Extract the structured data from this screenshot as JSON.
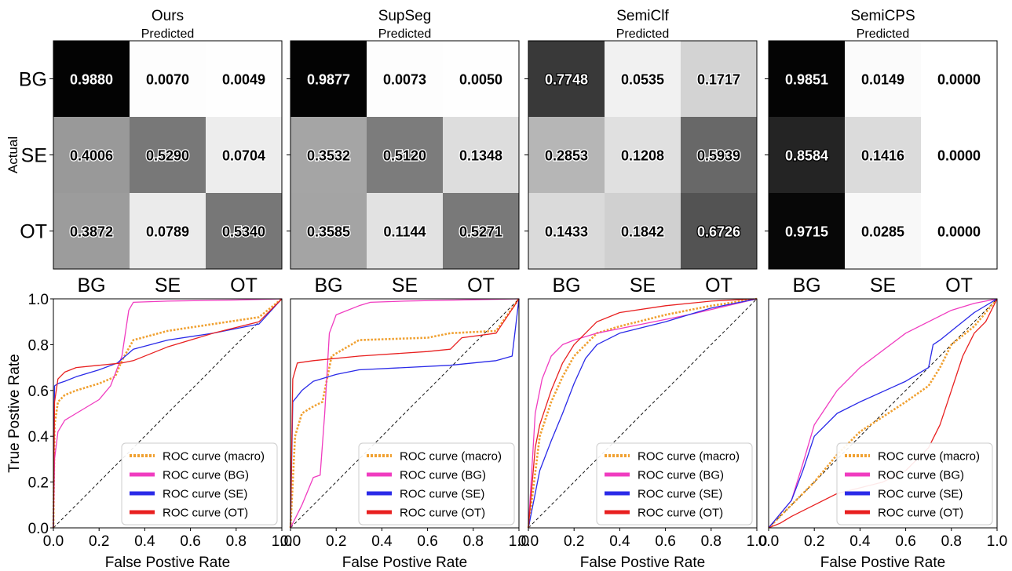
{
  "cm_panels": [
    {
      "title": "Ours",
      "xlabel": "Predicted",
      "ylabel": "Actual",
      "row_labels": [
        "BG",
        "SE",
        "OT"
      ],
      "col_labels": [
        "BG",
        "SE",
        "OT"
      ],
      "matrix": [
        [
          0.988,
          0.007,
          0.0049
        ],
        [
          0.4006,
          0.529,
          0.0704
        ],
        [
          0.3872,
          0.0789,
          0.534
        ]
      ],
      "cell_text": [
        [
          "0.9880",
          "0.0070",
          "0.0049"
        ],
        [
          "0.4006",
          "0.5290",
          "0.0704"
        ],
        [
          "0.3872",
          "0.0789",
          "0.5340"
        ]
      ]
    },
    {
      "title": "SupSeg",
      "xlabel": "Predicted",
      "col_labels": [
        "BG",
        "SE",
        "OT"
      ],
      "matrix": [
        [
          0.9877,
          0.0073,
          0.005
        ],
        [
          0.3532,
          0.512,
          0.1348
        ],
        [
          0.3585,
          0.1144,
          0.5271
        ]
      ],
      "cell_text": [
        [
          "0.9877",
          "0.0073",
          "0.0050"
        ],
        [
          "0.3532",
          "0.5120",
          "0.1348"
        ],
        [
          "0.3585",
          "0.1144",
          "0.5271"
        ]
      ]
    },
    {
      "title": "SemiClf",
      "xlabel": "Predicted",
      "col_labels": [
        "BG",
        "SE",
        "OT"
      ],
      "matrix": [
        [
          0.7748,
          0.0535,
          0.1717
        ],
        [
          0.2853,
          0.1208,
          0.5939
        ],
        [
          0.1433,
          0.1842,
          0.6726
        ]
      ],
      "cell_text": [
        [
          "0.7748",
          "0.0535",
          "0.1717"
        ],
        [
          "0.2853",
          "0.1208",
          "0.5939"
        ],
        [
          "0.1433",
          "0.1842",
          "0.6726"
        ]
      ]
    },
    {
      "title": "SemiCPS",
      "xlabel": "Predicted",
      "col_labels": [
        "BG",
        "SE",
        "OT"
      ],
      "matrix": [
        [
          0.9851,
          0.0149,
          0.0
        ],
        [
          0.8584,
          0.1416,
          0.0
        ],
        [
          0.9715,
          0.0285,
          0.0
        ]
      ],
      "cell_text": [
        [
          "0.9851",
          "0.0149",
          "0.0000"
        ],
        [
          "0.8584",
          "0.1416",
          "0.0000"
        ],
        [
          "0.9715",
          "0.0285",
          "0.0000"
        ]
      ]
    }
  ],
  "roc_common": {
    "xlabel": "False Postive Rate",
    "ylabel": "True Postive Rate",
    "xticks": [
      "0.0",
      "0.2",
      "0.4",
      "0.6",
      "0.8",
      "1.0"
    ],
    "yticks": [
      "0.0",
      "0.2",
      "0.4",
      "0.6",
      "0.8",
      "1.0"
    ],
    "xlim": [
      0,
      1
    ],
    "ylim": [
      0,
      1
    ],
    "legend_position": "bottom-right",
    "series": [
      {
        "key": "macro",
        "name": "ROC curve (macro)",
        "color": "#f0a030",
        "style": "dotted"
      },
      {
        "key": "bg",
        "name": "ROC curve (BG)",
        "color": "#f03cc0",
        "style": "solid"
      },
      {
        "key": "se",
        "name": "ROC curve (SE)",
        "color": "#2a2ae8",
        "style": "solid"
      },
      {
        "key": "ot",
        "name": "ROC curve (OT)",
        "color": "#e82020",
        "style": "solid"
      }
    ]
  },
  "chart_data": [
    {
      "type": "line",
      "panel": "Ours",
      "xlim": [
        0,
        1
      ],
      "ylim": [
        0,
        1
      ],
      "series": [
        {
          "name": "ROC curve (macro)",
          "x": [
            0,
            0.005,
            0.02,
            0.05,
            0.1,
            0.2,
            0.27,
            0.3,
            0.35,
            0.5,
            0.7,
            0.9,
            1.0
          ],
          "y": [
            0,
            0.45,
            0.55,
            0.58,
            0.6,
            0.63,
            0.66,
            0.73,
            0.82,
            0.86,
            0.89,
            0.92,
            1.0
          ]
        },
        {
          "name": "ROC curve (BG)",
          "x": [
            0,
            0.005,
            0.02,
            0.05,
            0.1,
            0.2,
            0.25,
            0.3,
            0.33,
            0.35,
            0.5,
            0.8,
            1.0
          ],
          "y": [
            0,
            0.3,
            0.42,
            0.47,
            0.5,
            0.56,
            0.62,
            0.75,
            0.95,
            0.985,
            0.99,
            0.995,
            1.0
          ]
        },
        {
          "name": "ROC curve (SE)",
          "x": [
            0,
            0.005,
            0.02,
            0.05,
            0.1,
            0.2,
            0.28,
            0.35,
            0.5,
            0.7,
            0.9,
            1.0
          ],
          "y": [
            0,
            0.62,
            0.63,
            0.64,
            0.66,
            0.69,
            0.72,
            0.78,
            0.82,
            0.85,
            0.89,
            1.0
          ]
        },
        {
          "name": "ROC curve (OT)",
          "x": [
            0,
            0.005,
            0.02,
            0.05,
            0.1,
            0.2,
            0.3,
            0.35,
            0.5,
            0.7,
            0.9,
            1.0
          ],
          "y": [
            0,
            0.55,
            0.65,
            0.68,
            0.7,
            0.71,
            0.72,
            0.73,
            0.79,
            0.85,
            0.9,
            1.0
          ]
        }
      ]
    },
    {
      "type": "line",
      "panel": "SupSeg",
      "xlim": [
        0,
        1
      ],
      "ylim": [
        0,
        1
      ],
      "series": [
        {
          "name": "ROC curve (macro)",
          "x": [
            0,
            0.02,
            0.05,
            0.1,
            0.14,
            0.18,
            0.3,
            0.6,
            0.7,
            0.9,
            1.0
          ],
          "y": [
            0,
            0.4,
            0.5,
            0.53,
            0.55,
            0.75,
            0.82,
            0.83,
            0.85,
            0.86,
            1.0
          ]
        },
        {
          "name": "ROC curve (BG)",
          "x": [
            0,
            0.05,
            0.1,
            0.13,
            0.15,
            0.17,
            0.2,
            0.3,
            0.35,
            0.5,
            1.0
          ],
          "y": [
            0,
            0.1,
            0.22,
            0.23,
            0.5,
            0.85,
            0.93,
            0.97,
            0.985,
            0.99,
            1.0
          ]
        },
        {
          "name": "ROC curve (SE)",
          "x": [
            0,
            0.01,
            0.05,
            0.1,
            0.2,
            0.3,
            0.5,
            0.7,
            0.9,
            0.97,
            1.0
          ],
          "y": [
            0,
            0.55,
            0.6,
            0.64,
            0.67,
            0.69,
            0.7,
            0.71,
            0.73,
            0.75,
            1.0
          ]
        },
        {
          "name": "ROC curve (OT)",
          "x": [
            0,
            0.01,
            0.03,
            0.1,
            0.3,
            0.6,
            0.7,
            0.75,
            0.9,
            1.0
          ],
          "y": [
            0,
            0.65,
            0.72,
            0.73,
            0.75,
            0.77,
            0.78,
            0.83,
            0.85,
            1.0
          ]
        }
      ]
    },
    {
      "type": "line",
      "panel": "SemiClf",
      "xlim": [
        0,
        1
      ],
      "ylim": [
        0,
        1
      ],
      "series": [
        {
          "name": "ROC curve (macro)",
          "x": [
            0,
            0.05,
            0.1,
            0.15,
            0.2,
            0.3,
            0.4,
            0.6,
            0.8,
            1.0
          ],
          "y": [
            0,
            0.4,
            0.55,
            0.66,
            0.75,
            0.85,
            0.88,
            0.93,
            0.97,
            1.0
          ]
        },
        {
          "name": "ROC curve (BG)",
          "x": [
            0,
            0.03,
            0.06,
            0.1,
            0.15,
            0.2,
            0.3,
            0.5,
            0.7,
            1.0
          ],
          "y": [
            0,
            0.5,
            0.65,
            0.75,
            0.8,
            0.82,
            0.85,
            0.89,
            0.93,
            1.0
          ]
        },
        {
          "name": "ROC curve (SE)",
          "x": [
            0,
            0.05,
            0.1,
            0.15,
            0.2,
            0.25,
            0.3,
            0.4,
            0.6,
            0.8,
            1.0
          ],
          "y": [
            0,
            0.25,
            0.38,
            0.5,
            0.63,
            0.74,
            0.8,
            0.85,
            0.9,
            0.96,
            1.0
          ]
        },
        {
          "name": "ROC curve (OT)",
          "x": [
            0,
            0.03,
            0.05,
            0.1,
            0.15,
            0.2,
            0.3,
            0.4,
            0.6,
            0.8,
            1.0
          ],
          "y": [
            0,
            0.35,
            0.45,
            0.6,
            0.72,
            0.8,
            0.9,
            0.94,
            0.97,
            0.99,
            1.0
          ]
        }
      ]
    },
    {
      "type": "line",
      "panel": "SemiCPS",
      "xlim": [
        0,
        1
      ],
      "ylim": [
        0,
        1
      ],
      "series": [
        {
          "name": "ROC curve (macro)",
          "x": [
            0,
            0.05,
            0.1,
            0.2,
            0.3,
            0.4,
            0.6,
            0.7,
            0.75,
            0.8,
            0.9,
            1.0
          ],
          "y": [
            0,
            0.05,
            0.1,
            0.2,
            0.32,
            0.42,
            0.55,
            0.62,
            0.7,
            0.8,
            0.88,
            1.0
          ]
        },
        {
          "name": "ROC curve (BG)",
          "x": [
            0,
            0.05,
            0.1,
            0.15,
            0.2,
            0.3,
            0.4,
            0.6,
            0.8,
            0.9,
            1.0
          ],
          "y": [
            0,
            0.06,
            0.12,
            0.28,
            0.45,
            0.6,
            0.7,
            0.85,
            0.95,
            0.98,
            1.0
          ]
        },
        {
          "name": "ROC curve (SE)",
          "x": [
            0,
            0.05,
            0.1,
            0.15,
            0.2,
            0.3,
            0.4,
            0.6,
            0.7,
            0.72,
            0.75,
            0.8,
            0.9,
            1.0
          ],
          "y": [
            0,
            0.06,
            0.12,
            0.25,
            0.4,
            0.5,
            0.55,
            0.64,
            0.7,
            0.8,
            0.82,
            0.86,
            0.94,
            1.0
          ]
        },
        {
          "name": "ROC curve (OT)",
          "x": [
            0,
            0.05,
            0.1,
            0.2,
            0.3,
            0.5,
            0.6,
            0.7,
            0.75,
            0.8,
            0.85,
            0.9,
            0.95,
            1.0
          ],
          "y": [
            0,
            0.02,
            0.05,
            0.1,
            0.15,
            0.2,
            0.25,
            0.35,
            0.45,
            0.6,
            0.75,
            0.85,
            0.9,
            1.0
          ]
        }
      ]
    }
  ]
}
